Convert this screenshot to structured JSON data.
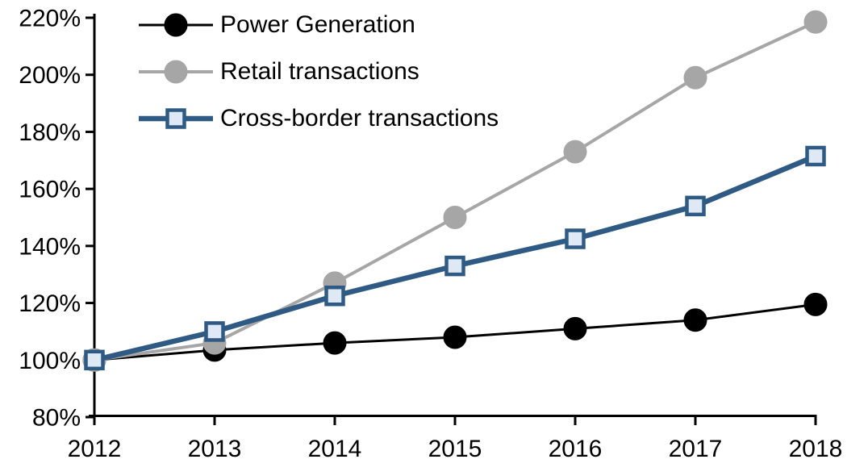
{
  "chart_data": {
    "type": "line",
    "title": "",
    "xlabel": "",
    "ylabel": "",
    "grid": false,
    "legend_position": "top-left",
    "background_color": "#FFFFFF",
    "text_color": "#000000",
    "axis_color": "#000000",
    "categories": [
      "2012",
      "2013",
      "2014",
      "2015",
      "2016",
      "2017",
      "2018"
    ],
    "ylim": [
      80,
      220
    ],
    "y_ticks": [
      {
        "value": 220,
        "label": "220%"
      },
      {
        "value": 200,
        "label": "200%"
      },
      {
        "value": 180,
        "label": "180%"
      },
      {
        "value": 160,
        "label": "160%"
      },
      {
        "value": 140,
        "label": "140%"
      },
      {
        "value": 120,
        "label": "120%"
      },
      {
        "value": 100,
        "label": "100%"
      },
      {
        "value": 80,
        "label": "80%"
      }
    ],
    "series": [
      {
        "name": "Power Generation",
        "values": [
          100,
          103.5,
          106,
          108,
          111,
          114,
          119.5
        ],
        "line_color": "#000000",
        "line_width": 3,
        "marker": "circle",
        "marker_fill": "#000000",
        "marker_stroke": "#000000"
      },
      {
        "name": "Retail transactions",
        "values": [
          100,
          106,
          127,
          150,
          173,
          199,
          218.5
        ],
        "line_color": "#A6A6A6",
        "line_width": 4,
        "marker": "circle",
        "marker_fill": "#A6A6A6",
        "marker_stroke": "#A6A6A6"
      },
      {
        "name": "Cross-border transactions",
        "values": [
          100,
          110,
          122.5,
          133,
          142.5,
          154,
          171.5
        ],
        "line_color": "#2E5A84",
        "line_width": 6.5,
        "marker": "square",
        "marker_fill": "#DEE9F5",
        "marker_stroke": "#2E5A84"
      }
    ]
  }
}
